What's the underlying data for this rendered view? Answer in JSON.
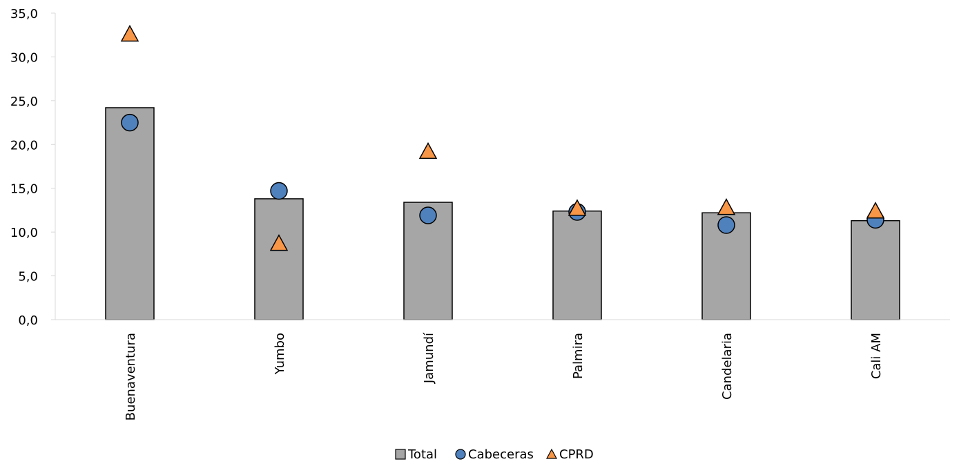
{
  "chart_data": {
    "type": "bar",
    "categories": [
      "Buenaventura",
      "Yumbo",
      "Jamundí",
      "Palmira",
      "Candelaria",
      "Cali AM"
    ],
    "series": [
      {
        "name": "Total",
        "kind": "bar",
        "color": "#a6a6a6",
        "values": [
          24.2,
          13.8,
          13.4,
          12.4,
          12.2,
          11.3
        ]
      },
      {
        "name": "Cabeceras",
        "kind": "circle-marker",
        "color": "#4f81bd",
        "values": [
          22.5,
          14.7,
          11.9,
          12.3,
          10.8,
          11.4
        ]
      },
      {
        "name": "CPRD",
        "kind": "triangle-marker",
        "color": "#f79646",
        "values": [
          32.6,
          8.7,
          19.2,
          12.7,
          12.8,
          12.4
        ]
      }
    ],
    "yticks": [
      "0,0",
      "5,0",
      "10,0",
      "15,0",
      "20,0",
      "25,0",
      "30,0",
      "35,0"
    ],
    "ylim": [
      0,
      35
    ],
    "grid": false,
    "legend_position": "bottom",
    "title": "",
    "xlabel": "",
    "ylabel": ""
  }
}
